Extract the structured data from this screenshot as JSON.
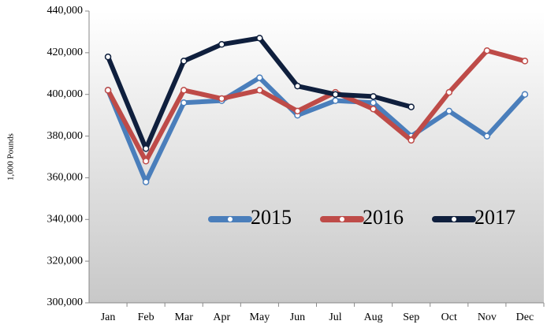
{
  "chart_data": {
    "type": "line",
    "y_label": "1,000 Pounds",
    "categories": [
      "Jan",
      "Feb",
      "Mar",
      "Apr",
      "May",
      "Jun",
      "Jul",
      "Aug",
      "Sep",
      "Oct",
      "Nov",
      "Dec"
    ],
    "series": [
      {
        "name": "2015",
        "color": "#4a7ebb",
        "values": [
          402000,
          358000,
          396000,
          397000,
          408000,
          390000,
          397000,
          396000,
          380000,
          392000,
          380000,
          400000
        ]
      },
      {
        "name": "2016",
        "color": "#be4b48",
        "values": [
          402000,
          368000,
          402000,
          398000,
          402000,
          392000,
          401000,
          393000,
          378000,
          401000,
          421000,
          416000
        ]
      },
      {
        "name": "2017",
        "color": "#0f1f3d",
        "values": [
          418000,
          374000,
          416000,
          424000,
          427000,
          404000,
          400000,
          399000,
          394000,
          null,
          null,
          null
        ]
      }
    ],
    "ylim": [
      300000,
      440000
    ],
    "yticks": [
      {
        "value": 300000,
        "label": "300,000"
      },
      {
        "value": 320000,
        "label": "320,000"
      },
      {
        "value": 340000,
        "label": "340,000"
      },
      {
        "value": 360000,
        "label": "360,000"
      },
      {
        "value": 380000,
        "label": "380,000"
      },
      {
        "value": 400000,
        "label": "400,000"
      },
      {
        "value": 420000,
        "label": "420,000"
      },
      {
        "value": 440000,
        "label": "440,000"
      }
    ],
    "legend": "inside-bottom"
  }
}
